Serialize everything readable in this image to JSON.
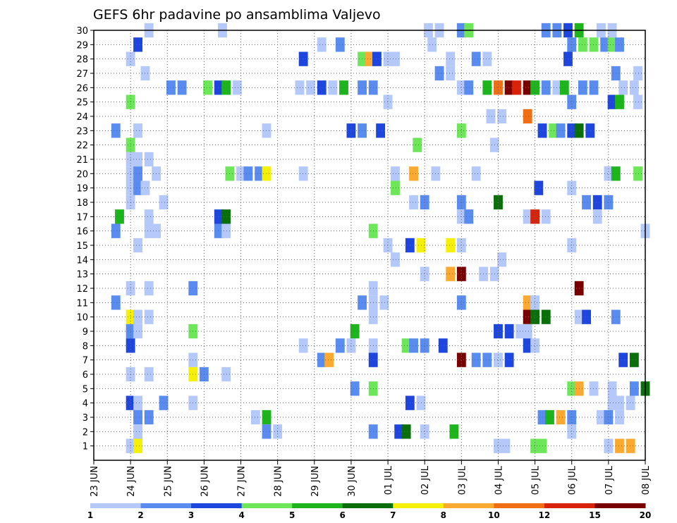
{
  "chart_data": {
    "type": "heatmap",
    "title": "GEFS 6hr padavine po ansamblima Valjevo",
    "xlabel": "",
    "ylabel": "",
    "x_ticks": [
      "23 JUN",
      "24 JUN",
      "25 JUN",
      "26 JUN",
      "27 JUN",
      "28 JUN",
      "29 JUN",
      "30 JUN",
      "01 JUL",
      "02 JUL",
      "03 JUL",
      "04 JUL",
      "05 JUL",
      "06 JUL",
      "07 JUL",
      "08 JUL"
    ],
    "xlim": [
      0,
      15
    ],
    "y_ticks": [
      1,
      2,
      3,
      4,
      5,
      6,
      7,
      8,
      9,
      10,
      11,
      12,
      13,
      14,
      15,
      16,
      17,
      18,
      19,
      20,
      21,
      22,
      23,
      24,
      25,
      26,
      27,
      28,
      29,
      30
    ],
    "ylim": [
      0,
      30
    ],
    "grid": true,
    "levels": [
      1,
      2,
      3,
      4,
      5,
      6,
      7,
      8,
      10,
      12,
      15,
      20
    ],
    "level_colors": [
      "#b4c8fa",
      "#5a8cf0",
      "#1e46dc",
      "#6ee65a",
      "#1eb41e",
      "#0a6e0a",
      "#f5f00a",
      "#faaa32",
      "#f06e14",
      "#d7230a",
      "#780000"
    ],
    "colorbar_labels": [
      "1",
      "2",
      "3",
      "4",
      "5",
      "6",
      "7",
      "8",
      "10",
      "12",
      "15",
      "20"
    ],
    "cells": [
      [
        30,
        1.5,
        0
      ],
      [
        30,
        3.5,
        0
      ],
      [
        30,
        9.1,
        0
      ],
      [
        30,
        9.4,
        0
      ],
      [
        30,
        10.0,
        1
      ],
      [
        30,
        10.2,
        3
      ],
      [
        30,
        12.3,
        1
      ],
      [
        30,
        12.6,
        1
      ],
      [
        30,
        12.9,
        2
      ],
      [
        30,
        13.2,
        4
      ],
      [
        30,
        13.8,
        0
      ],
      [
        30,
        14.1,
        0
      ],
      [
        29,
        1.2,
        2
      ],
      [
        29,
        6.2,
        0
      ],
      [
        29,
        6.7,
        1
      ],
      [
        29,
        9.2,
        0
      ],
      [
        29,
        13.0,
        1
      ],
      [
        29,
        13.3,
        3
      ],
      [
        29,
        13.6,
        3
      ],
      [
        29,
        13.9,
        1
      ],
      [
        29,
        14.1,
        3
      ],
      [
        29,
        14.3,
        1
      ],
      [
        28,
        1.0,
        0
      ],
      [
        28,
        5.7,
        2
      ],
      [
        28,
        7.3,
        3
      ],
      [
        28,
        7.5,
        7
      ],
      [
        28,
        7.7,
        2
      ],
      [
        28,
        8.0,
        0
      ],
      [
        28,
        8.2,
        0
      ],
      [
        28,
        9.7,
        0
      ],
      [
        28,
        10.4,
        1
      ],
      [
        28,
        10.7,
        0
      ],
      [
        28,
        12.9,
        2
      ],
      [
        27,
        1.4,
        0
      ],
      [
        27,
        9.4,
        1
      ],
      [
        27,
        9.7,
        0
      ],
      [
        27,
        14.2,
        1
      ],
      [
        27,
        14.8,
        0
      ],
      [
        26,
        2.1,
        1
      ],
      [
        26,
        2.4,
        1
      ],
      [
        26,
        3.1,
        3
      ],
      [
        26,
        3.4,
        2
      ],
      [
        26,
        3.6,
        4
      ],
      [
        26,
        3.9,
        0
      ],
      [
        26,
        5.6,
        0
      ],
      [
        26,
        5.9,
        0
      ],
      [
        26,
        6.2,
        2
      ],
      [
        26,
        6.5,
        0
      ],
      [
        26,
        6.8,
        4
      ],
      [
        26,
        7.3,
        1
      ],
      [
        26,
        7.6,
        1
      ],
      [
        26,
        10.0,
        0
      ],
      [
        26,
        10.2,
        1
      ],
      [
        26,
        10.7,
        4
      ],
      [
        26,
        11.0,
        8
      ],
      [
        26,
        11.3,
        10
      ],
      [
        26,
        11.5,
        9
      ],
      [
        26,
        11.8,
        10
      ],
      [
        26,
        12.0,
        4
      ],
      [
        26,
        12.3,
        1
      ],
      [
        26,
        12.6,
        0
      ],
      [
        26,
        12.8,
        4
      ],
      [
        26,
        13.3,
        1
      ],
      [
        26,
        13.6,
        1
      ],
      [
        26,
        14.4,
        0
      ],
      [
        26,
        14.7,
        0
      ],
      [
        25,
        1.0,
        3
      ],
      [
        25,
        8.0,
        0
      ],
      [
        25,
        13.0,
        1
      ],
      [
        25,
        14.1,
        2
      ],
      [
        25,
        14.3,
        4
      ],
      [
        25,
        14.8,
        0
      ],
      [
        24,
        10.8,
        0
      ],
      [
        24,
        11.1,
        0
      ],
      [
        24,
        11.8,
        8
      ],
      [
        23,
        0.6,
        1
      ],
      [
        23,
        1.2,
        0
      ],
      [
        23,
        4.7,
        0
      ],
      [
        23,
        7.0,
        2
      ],
      [
        23,
        7.3,
        1
      ],
      [
        23,
        7.8,
        2
      ],
      [
        23,
        10.0,
        3
      ],
      [
        23,
        12.2,
        2
      ],
      [
        23,
        12.5,
        3
      ],
      [
        23,
        12.7,
        1
      ],
      [
        23,
        13.0,
        2
      ],
      [
        23,
        13.2,
        5
      ],
      [
        23,
        13.5,
        2
      ],
      [
        22,
        1.0,
        3
      ],
      [
        22,
        8.8,
        3
      ],
      [
        22,
        10.9,
        0
      ],
      [
        21,
        1.0,
        0
      ],
      [
        21,
        1.2,
        0
      ],
      [
        21,
        1.5,
        0
      ],
      [
        20,
        1.0,
        0
      ],
      [
        20,
        1.2,
        1
      ],
      [
        20,
        1.7,
        0
      ],
      [
        20,
        3.7,
        3
      ],
      [
        20,
        4.0,
        0
      ],
      [
        20,
        4.2,
        1
      ],
      [
        20,
        4.5,
        1
      ],
      [
        20,
        4.7,
        6
      ],
      [
        20,
        5.7,
        0
      ],
      [
        20,
        8.2,
        0
      ],
      [
        20,
        8.7,
        7
      ],
      [
        20,
        9.3,
        0
      ],
      [
        20,
        10.4,
        0
      ],
      [
        20,
        14.0,
        0
      ],
      [
        20,
        14.2,
        4
      ],
      [
        20,
        14.8,
        3
      ],
      [
        19,
        1.0,
        0
      ],
      [
        19,
        1.2,
        1
      ],
      [
        19,
        1.4,
        0
      ],
      [
        19,
        8.2,
        3
      ],
      [
        19,
        12.1,
        2
      ],
      [
        19,
        13.0,
        0
      ],
      [
        18,
        1.0,
        0
      ],
      [
        18,
        1.9,
        0
      ],
      [
        18,
        8.7,
        0
      ],
      [
        18,
        9.0,
        1
      ],
      [
        18,
        10.0,
        1
      ],
      [
        18,
        11.0,
        5
      ],
      [
        18,
        13.4,
        1
      ],
      [
        18,
        13.7,
        2
      ],
      [
        18,
        14.0,
        1
      ],
      [
        17,
        0.7,
        4
      ],
      [
        17,
        3.4,
        2
      ],
      [
        17,
        3.6,
        5
      ],
      [
        17,
        1.5,
        0
      ],
      [
        17,
        10.0,
        0
      ],
      [
        17,
        10.2,
        1
      ],
      [
        17,
        11.8,
        0
      ],
      [
        17,
        12.0,
        9
      ],
      [
        17,
        12.3,
        0
      ],
      [
        17,
        13.7,
        0
      ],
      [
        16,
        0.6,
        1
      ],
      [
        16,
        1.5,
        0
      ],
      [
        16,
        1.7,
        0
      ],
      [
        16,
        3.4,
        1
      ],
      [
        16,
        3.6,
        0
      ],
      [
        16,
        7.6,
        3
      ],
      [
        16,
        15.0,
        0
      ],
      [
        15,
        1.2,
        0
      ],
      [
        15,
        8.0,
        0
      ],
      [
        15,
        8.6,
        2
      ],
      [
        15,
        8.9,
        6
      ],
      [
        15,
        9.7,
        6
      ],
      [
        15,
        10.0,
        0
      ],
      [
        15,
        13.0,
        0
      ],
      [
        14,
        8.2,
        0
      ],
      [
        14,
        11.1,
        0
      ],
      [
        13,
        9.0,
        0
      ],
      [
        13,
        9.7,
        7
      ],
      [
        13,
        10.0,
        10
      ],
      [
        13,
        10.6,
        0
      ],
      [
        13,
        10.9,
        0
      ],
      [
        12,
        1.0,
        0
      ],
      [
        12,
        1.5,
        0
      ],
      [
        12,
        2.7,
        1
      ],
      [
        12,
        7.6,
        0
      ],
      [
        12,
        13.2,
        10
      ],
      [
        11,
        0.6,
        1
      ],
      [
        11,
        7.3,
        1
      ],
      [
        11,
        7.6,
        0
      ],
      [
        11,
        7.9,
        0
      ],
      [
        11,
        10.0,
        1
      ],
      [
        11,
        11.8,
        7
      ],
      [
        11,
        12.0,
        0
      ],
      [
        10,
        1.0,
        6
      ],
      [
        10,
        1.2,
        0
      ],
      [
        10,
        1.5,
        0
      ],
      [
        10,
        7.6,
        0
      ],
      [
        10,
        11.8,
        10
      ],
      [
        10,
        12.0,
        5
      ],
      [
        10,
        12.3,
        5
      ],
      [
        10,
        13.2,
        0
      ],
      [
        10,
        13.4,
        2
      ],
      [
        10,
        14.2,
        1
      ],
      [
        9,
        1.0,
        1
      ],
      [
        9,
        1.2,
        0
      ],
      [
        9,
        2.7,
        3
      ],
      [
        9,
        7.1,
        4
      ],
      [
        9,
        11.0,
        2
      ],
      [
        9,
        11.3,
        2
      ],
      [
        9,
        11.6,
        0
      ],
      [
        9,
        11.8,
        0
      ],
      [
        8,
        1.0,
        2
      ],
      [
        8,
        5.7,
        0
      ],
      [
        8,
        6.7,
        1
      ],
      [
        8,
        7.0,
        0
      ],
      [
        8,
        7.6,
        0
      ],
      [
        8,
        8.5,
        3
      ],
      [
        8,
        8.7,
        1
      ],
      [
        8,
        9.0,
        1
      ],
      [
        8,
        9.5,
        2
      ],
      [
        8,
        11.8,
        2
      ],
      [
        8,
        12.0,
        0
      ],
      [
        7,
        2.7,
        0
      ],
      [
        7,
        6.2,
        1
      ],
      [
        7,
        6.4,
        7
      ],
      [
        7,
        7.6,
        2
      ],
      [
        7,
        10.0,
        10
      ],
      [
        7,
        10.4,
        1
      ],
      [
        7,
        10.7,
        1
      ],
      [
        7,
        11.0,
        0
      ],
      [
        7,
        11.3,
        2
      ],
      [
        7,
        14.4,
        2
      ],
      [
        7,
        14.7,
        5
      ],
      [
        6,
        1.0,
        0
      ],
      [
        6,
        1.5,
        0
      ],
      [
        6,
        2.7,
        6
      ],
      [
        6,
        3.0,
        1
      ],
      [
        6,
        3.6,
        0
      ],
      [
        5,
        7.1,
        1
      ],
      [
        5,
        7.6,
        3
      ],
      [
        5,
        13.0,
        3
      ],
      [
        5,
        13.2,
        7
      ],
      [
        5,
        13.6,
        0
      ],
      [
        5,
        14.1,
        0
      ],
      [
        5,
        14.7,
        1
      ],
      [
        5,
        15.0,
        5
      ],
      [
        4,
        1.0,
        2
      ],
      [
        4,
        1.2,
        0
      ],
      [
        4,
        1.9,
        1
      ],
      [
        4,
        2.7,
        0
      ],
      [
        4,
        8.6,
        2
      ],
      [
        4,
        8.9,
        0
      ],
      [
        4,
        14.1,
        0
      ],
      [
        4,
        14.3,
        0
      ],
      [
        4,
        14.6,
        0
      ],
      [
        3,
        1.2,
        1
      ],
      [
        3,
        1.5,
        1
      ],
      [
        3,
        4.4,
        0
      ],
      [
        3,
        4.7,
        4
      ],
      [
        3,
        12.2,
        1
      ],
      [
        3,
        12.4,
        4
      ],
      [
        3,
        12.7,
        7
      ],
      [
        3,
        13.0,
        1
      ],
      [
        3,
        13.8,
        0
      ],
      [
        3,
        14.0,
        1
      ],
      [
        3,
        14.3,
        0
      ],
      [
        2,
        1.2,
        0
      ],
      [
        2,
        4.7,
        1
      ],
      [
        2,
        5.0,
        0
      ],
      [
        2,
        7.6,
        1
      ],
      [
        2,
        8.3,
        2
      ],
      [
        2,
        8.5,
        5
      ],
      [
        2,
        9.0,
        0
      ],
      [
        2,
        9.8,
        4
      ],
      [
        2,
        13.0,
        0
      ],
      [
        1,
        1.0,
        0
      ],
      [
        1,
        1.2,
        6
      ],
      [
        1,
        11.0,
        0
      ],
      [
        1,
        11.2,
        0
      ],
      [
        1,
        12.0,
        3
      ],
      [
        1,
        12.2,
        3
      ],
      [
        1,
        14.0,
        0
      ],
      [
        1,
        14.3,
        7
      ],
      [
        1,
        14.6,
        7
      ]
    ]
  }
}
